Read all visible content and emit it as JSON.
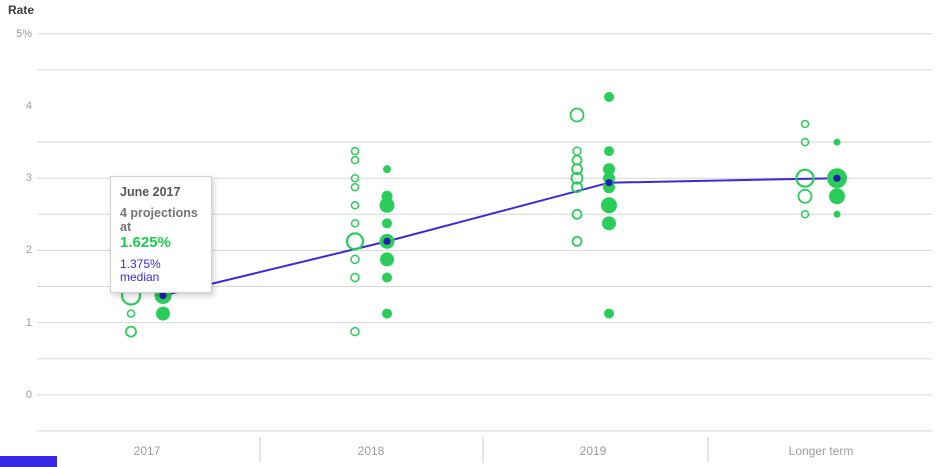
{
  "chart": {
    "y_axis_title": "Rate",
    "tooltip": {
      "title": "June 2017",
      "subtitle": "4 projections at",
      "value": "1.625%",
      "median_label": "1.375% median"
    },
    "colors": {
      "dot_green": "#2bcd5a",
      "median_line_blue": "#3d2ad6",
      "median_dot_blue": "#231db4",
      "highlight_ring": "#000000",
      "gridline": "#d7d7d7",
      "axis_text": "#9c9c9c",
      "tooltip_green": "#1ec94e",
      "tooltip_blue": "#3e2bd8",
      "brand_bar_blue": "#3626e6"
    }
  },
  "chart_data": {
    "type": "scatter",
    "title": "",
    "xlabel": "",
    "ylabel": "Rate",
    "categories": [
      "2017",
      "2018",
      "2019",
      "Longer term"
    ],
    "y_tick_labels": [
      {
        "label": "5%",
        "rate": 5
      },
      {
        "label": "4",
        "rate": 4
      },
      {
        "label": "3",
        "rate": 3
      },
      {
        "label": "2",
        "rate": 2
      },
      {
        "label": "1",
        "rate": 1
      },
      {
        "label": "0",
        "rate": 0
      }
    ],
    "gridline_rates": [
      5,
      4.5,
      3.5,
      3,
      2.5,
      2,
      1.5,
      1,
      0.5,
      0,
      -0.5
    ],
    "ylim": [
      -0.6,
      5.3
    ],
    "legend": "none",
    "median_line": {
      "name": "median",
      "values": [
        1.375,
        2.125,
        2.9375,
        3.0
      ]
    },
    "series": [
      {
        "name": "previous-projections",
        "style": "open",
        "points": [
          {
            "cat": "2017",
            "rate": 1.625,
            "r": 6
          },
          {
            "cat": "2017",
            "rate": 1.375,
            "r": 9
          },
          {
            "cat": "2017",
            "rate": 1.125,
            "r": 3.5
          },
          {
            "cat": "2017",
            "rate": 0.875,
            "r": 5
          },
          {
            "cat": "2018",
            "rate": 3.375,
            "r": 3.5
          },
          {
            "cat": "2018",
            "rate": 3.25,
            "r": 3.5
          },
          {
            "cat": "2018",
            "rate": 3.0,
            "r": 3.5
          },
          {
            "cat": "2018",
            "rate": 2.875,
            "r": 3.5
          },
          {
            "cat": "2018",
            "rate": 2.625,
            "r": 3.5
          },
          {
            "cat": "2018",
            "rate": 2.375,
            "r": 3.5
          },
          {
            "cat": "2018",
            "rate": 2.125,
            "r": 8
          },
          {
            "cat": "2018",
            "rate": 1.875,
            "r": 4
          },
          {
            "cat": "2018",
            "rate": 1.625,
            "r": 4
          },
          {
            "cat": "2018",
            "rate": 0.875,
            "r": 4
          },
          {
            "cat": "2019",
            "rate": 3.875,
            "r": 6.5
          },
          {
            "cat": "2019",
            "rate": 3.375,
            "r": 4
          },
          {
            "cat": "2019",
            "rate": 3.25,
            "r": 4.5
          },
          {
            "cat": "2019",
            "rate": 3.125,
            "r": 5
          },
          {
            "cat": "2019",
            "rate": 3.0,
            "r": 5.5
          },
          {
            "cat": "2019",
            "rate": 2.875,
            "r": 5
          },
          {
            "cat": "2019",
            "rate": 2.5,
            "r": 4.5
          },
          {
            "cat": "2019",
            "rate": 2.125,
            "r": 4.5
          },
          {
            "cat": "Longer term",
            "rate": 3.75,
            "r": 3.5
          },
          {
            "cat": "Longer term",
            "rate": 3.5,
            "r": 3.5
          },
          {
            "cat": "Longer term",
            "rate": 3.0,
            "r": 8.5
          },
          {
            "cat": "Longer term",
            "rate": 2.75,
            "r": 6.5
          },
          {
            "cat": "Longer term",
            "rate": 2.5,
            "r": 3.5
          }
        ]
      },
      {
        "name": "june-2017-projections",
        "style": "filled",
        "points": [
          {
            "cat": "2017",
            "rate": 1.625,
            "r": 7,
            "highlight": true
          },
          {
            "cat": "2017",
            "rate": 1.375,
            "r": 8.5
          },
          {
            "cat": "2017",
            "rate": 1.125,
            "r": 7
          },
          {
            "cat": "2018",
            "rate": 3.125,
            "r": 4
          },
          {
            "cat": "2018",
            "rate": 2.75,
            "r": 5.5
          },
          {
            "cat": "2018",
            "rate": 2.625,
            "r": 7.5
          },
          {
            "cat": "2018",
            "rate": 2.375,
            "r": 5
          },
          {
            "cat": "2018",
            "rate": 2.125,
            "r": 7.5
          },
          {
            "cat": "2018",
            "rate": 1.875,
            "r": 7
          },
          {
            "cat": "2018",
            "rate": 1.625,
            "r": 5
          },
          {
            "cat": "2018",
            "rate": 1.125,
            "r": 5
          },
          {
            "cat": "2019",
            "rate": 4.125,
            "r": 5
          },
          {
            "cat": "2019",
            "rate": 3.375,
            "r": 5
          },
          {
            "cat": "2019",
            "rate": 3.125,
            "r": 6
          },
          {
            "cat": "2019",
            "rate": 3.0,
            "r": 6
          },
          {
            "cat": "2019",
            "rate": 2.875,
            "r": 6
          },
          {
            "cat": "2019",
            "rate": 2.625,
            "r": 8
          },
          {
            "cat": "2019",
            "rate": 2.375,
            "r": 7
          },
          {
            "cat": "2019",
            "rate": 1.125,
            "r": 5
          },
          {
            "cat": "Longer term",
            "rate": 3.5,
            "r": 3.5
          },
          {
            "cat": "Longer term",
            "rate": 3.0,
            "r": 10
          },
          {
            "cat": "Longer term",
            "rate": 2.75,
            "r": 8
          },
          {
            "cat": "Longer term",
            "rate": 2.5,
            "r": 3.5
          }
        ]
      }
    ]
  }
}
